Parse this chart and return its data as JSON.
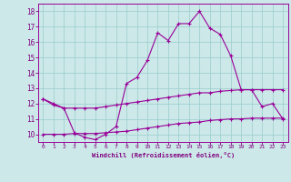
{
  "line1_x": [
    0,
    1,
    2,
    3,
    4,
    5,
    6,
    7,
    8,
    9,
    10,
    11,
    12,
    13,
    14,
    15,
    16,
    17,
    18,
    19,
    20,
    21,
    22,
    23
  ],
  "line1_y": [
    12.3,
    12.0,
    11.7,
    10.1,
    9.8,
    9.65,
    10.0,
    10.5,
    13.3,
    13.7,
    14.8,
    16.6,
    16.1,
    17.2,
    17.2,
    18.0,
    16.9,
    16.5,
    15.1,
    12.9,
    12.9,
    11.8,
    12.0,
    11.0
  ],
  "line2_x": [
    0,
    1,
    2,
    3,
    4,
    5,
    6,
    7,
    8,
    9,
    10,
    11,
    12,
    13,
    14,
    15,
    16,
    17,
    18,
    19,
    20,
    21,
    22,
    23
  ],
  "line2_y": [
    12.3,
    11.9,
    11.7,
    11.7,
    11.7,
    11.7,
    11.8,
    11.9,
    12.0,
    12.1,
    12.2,
    12.3,
    12.4,
    12.5,
    12.6,
    12.7,
    12.7,
    12.8,
    12.85,
    12.9,
    12.9,
    12.9,
    12.9,
    12.9
  ],
  "line3_x": [
    0,
    1,
    2,
    3,
    4,
    5,
    6,
    7,
    8,
    9,
    10,
    11,
    12,
    13,
    14,
    15,
    16,
    17,
    18,
    19,
    20,
    21,
    22,
    23
  ],
  "line3_y": [
    10.0,
    10.0,
    10.0,
    10.05,
    10.05,
    10.05,
    10.1,
    10.15,
    10.2,
    10.3,
    10.4,
    10.5,
    10.6,
    10.7,
    10.75,
    10.8,
    10.9,
    10.95,
    11.0,
    11.0,
    11.05,
    11.05,
    11.05,
    11.05
  ],
  "line_color": "#990099",
  "bg_color": "#cce8e8",
  "grid_color": "#99cccc",
  "xlabel": "Windchill (Refroidissement éolien,°C)",
  "xlabel_color": "#800080",
  "tick_color": "#800080",
  "ylim": [
    9.5,
    18.5
  ],
  "xlim": [
    -0.5,
    23.5
  ],
  "yticks": [
    10,
    11,
    12,
    13,
    14,
    15,
    16,
    17,
    18
  ],
  "xticks": [
    0,
    1,
    2,
    3,
    4,
    5,
    6,
    7,
    8,
    9,
    10,
    11,
    12,
    13,
    14,
    15,
    16,
    17,
    18,
    19,
    20,
    21,
    22,
    23
  ]
}
